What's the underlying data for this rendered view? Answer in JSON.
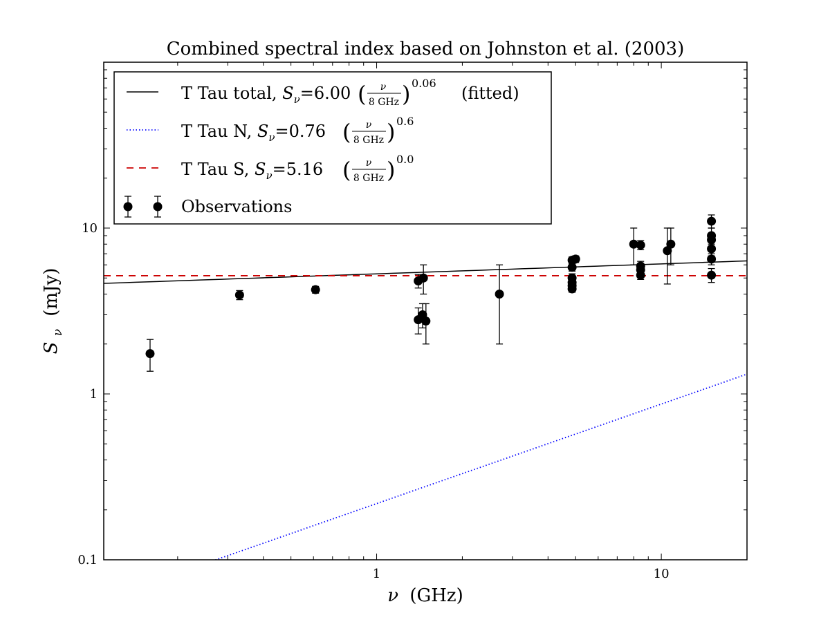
{
  "chart_data": {
    "type": "scatter",
    "title": "Combined spectral index based on Johnston et al. (2003)",
    "xlabel_var": "ν",
    "xlabel_unit": "(GHz)",
    "ylabel_var": "S",
    "ylabel_sub": "ν",
    "ylabel_unit": "(mJy)",
    "x_scale": "log",
    "y_scale": "log",
    "xlim": [
      0.11,
      20
    ],
    "ylim": [
      0.1,
      100
    ],
    "grid": false,
    "legend_position": "top-left",
    "x_ticks": [
      {
        "value": 1,
        "label": "1"
      },
      {
        "value": 10,
        "label": "10"
      }
    ],
    "y_ticks": [
      {
        "value": 0.1,
        "label": "0.1"
      },
      {
        "value": 1,
        "label": "1"
      },
      {
        "value": 10,
        "label": "10"
      }
    ],
    "series": [
      {
        "kind": "line",
        "style": "solid",
        "color": "#000000",
        "legend_prefix": "T Tau total, ",
        "coef": "6.00",
        "exp": "0.06",
        "suffix": "(fitted)",
        "amplitude": 6.0,
        "index": 0.06,
        "ref_GHz": 8
      },
      {
        "kind": "line",
        "style": "dotted",
        "color": "#0000ff",
        "legend_prefix": "T Tau N, ",
        "coef": "0.76",
        "exp": "0.6",
        "suffix": "",
        "amplitude": 0.76,
        "index": 0.6,
        "ref_GHz": 8
      },
      {
        "kind": "line",
        "style": "dashed",
        "color": "#cc0000",
        "legend_prefix": "T Tau S, ",
        "coef": "5.16",
        "exp": "0.0",
        "suffix": "",
        "amplitude": 5.16,
        "index": 0.0,
        "ref_GHz": 8
      },
      {
        "kind": "errorbar",
        "name": "Observations",
        "color": "#000000",
        "points": [
          {
            "x": 0.16,
            "y": 1.75,
            "err": 0.38
          },
          {
            "x": 0.33,
            "y": 3.95,
            "err": 0.25
          },
          {
            "x": 0.61,
            "y": 4.25,
            "err": 0.2
          },
          {
            "x": 1.4,
            "y": 4.8,
            "err": 0.45
          },
          {
            "x": 1.4,
            "y": 2.8,
            "err": 0.5
          },
          {
            "x": 1.45,
            "y": 3.0,
            "err": 0.5
          },
          {
            "x": 1.46,
            "y": 5.0,
            "err": 1.0
          },
          {
            "x": 1.49,
            "y": 2.75,
            "err": 0.75
          },
          {
            "x": 2.7,
            "y": 4.0,
            "err": 2.0
          },
          {
            "x": 4.86,
            "y": 6.4,
            "err": 0.3
          },
          {
            "x": 4.86,
            "y": 5.8,
            "err": 0.3
          },
          {
            "x": 4.86,
            "y": 5.0,
            "err": 0.3
          },
          {
            "x": 4.86,
            "y": 4.7,
            "err": 0.3
          },
          {
            "x": 4.86,
            "y": 4.5,
            "err": 0.3
          },
          {
            "x": 4.86,
            "y": 4.3,
            "err": 0.2
          },
          {
            "x": 5.0,
            "y": 6.5,
            "err": 0.3
          },
          {
            "x": 8.0,
            "y": 8.0,
            "err": 2.0
          },
          {
            "x": 8.46,
            "y": 7.9,
            "err": 0.5
          },
          {
            "x": 8.46,
            "y": 5.9,
            "err": 0.4
          },
          {
            "x": 8.46,
            "y": 5.6,
            "err": 0.4
          },
          {
            "x": 8.46,
            "y": 5.2,
            "err": 0.3
          },
          {
            "x": 10.5,
            "y": 7.3,
            "err": 2.7
          },
          {
            "x": 10.8,
            "y": 8.0,
            "err": 2.0
          },
          {
            "x": 15.0,
            "y": 11.0,
            "err": 1.0
          },
          {
            "x": 15.0,
            "y": 9.0,
            "err": 1.0
          },
          {
            "x": 15.0,
            "y": 8.5,
            "err": 0.8
          },
          {
            "x": 15.0,
            "y": 7.5,
            "err": 0.7
          },
          {
            "x": 15.0,
            "y": 6.5,
            "err": 0.5
          },
          {
            "x": 15.0,
            "y": 5.2,
            "err": 0.5
          }
        ]
      }
    ],
    "legend": {
      "fraction_num": "ν",
      "fraction_den": "8 GHz",
      "symbol": "S",
      "symbol_sub": "ν"
    }
  }
}
